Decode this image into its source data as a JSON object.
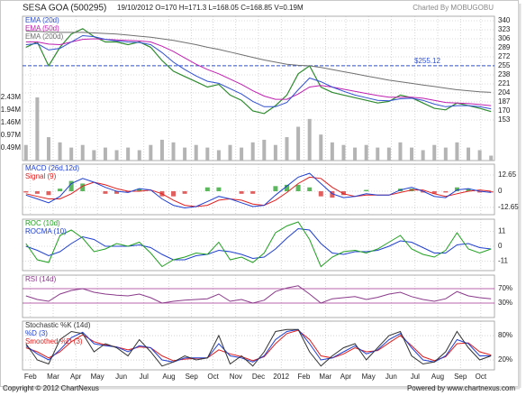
{
  "header": {
    "title": "SESA GOA (500295)",
    "quote": "19/10/2012 O=170 H=171.3 L=168.05 C=168.85 V=0.19M",
    "credit": "Charted By MOBUGOBU"
  },
  "footer": {
    "copyright": "Copyright © 2012 ChartNexus",
    "powered": "Powered by www.chartnexus.com"
  },
  "chart_data": [
    {
      "type": "line",
      "xlim": [
        -0.3,
        41.3
      ],
      "ylim": [
        76.5,
        348.5
      ],
      "grid": true,
      "yticks": [
        340,
        323,
        306,
        289,
        272,
        255,
        238,
        221,
        204,
        187,
        170,
        153
      ],
      "values": [
        290,
        300,
        255,
        290,
        315,
        325,
        310,
        300,
        300,
        295,
        300,
        290,
        265,
        245,
        235,
        225,
        215,
        220,
        200,
        190,
        170,
        165,
        180,
        200,
        240,
        255,
        215,
        205,
        200,
        195,
        190,
        185,
        188,
        200,
        195,
        185,
        175,
        172,
        185,
        180,
        175,
        168.85
      ],
      "color": "#2e8b2e",
      "series": [
        {
          "name": "EMA (20d)",
          "color": "#3050d0",
          "values": [
            295,
            297,
            285,
            288,
            300,
            312,
            310,
            305,
            302,
            300,
            299,
            295,
            280,
            262,
            248,
            236,
            226,
            222,
            212,
            202,
            188,
            178,
            178,
            186,
            210,
            232,
            225,
            215,
            207,
            200,
            195,
            190,
            189,
            193,
            194,
            190,
            183,
            178,
            180,
            180,
            178,
            174
          ]
        },
        {
          "name": "EMA (50d)",
          "color": "#c020b0",
          "values": [
            300,
            300,
            296,
            295,
            300,
            305,
            306,
            305,
            304,
            303,
            302,
            300,
            292,
            282,
            270,
            258,
            248,
            240,
            230,
            220,
            208,
            198,
            192,
            192,
            202,
            215,
            218,
            215,
            211,
            207,
            203,
            199,
            196,
            196,
            196,
            194,
            190,
            186,
            185,
            184,
            182,
            180
          ]
        },
        {
          "name": "EMA (200d)",
          "color": "#707070",
          "values": [
            320,
            320,
            319,
            318,
            318,
            318,
            317,
            316,
            315,
            313,
            311,
            309,
            306,
            303,
            299,
            295,
            290,
            286,
            281,
            276,
            271,
            266,
            262,
            258,
            256,
            255,
            252,
            248,
            244,
            240,
            236,
            232,
            228,
            225,
            222,
            219,
            216,
            213,
            210,
            208,
            206,
            205
          ]
        }
      ],
      "reference_line": {
        "value": 255.12,
        "label": "$255.12",
        "color": "#3050d0"
      },
      "volume": {
        "color": "#b4b4b4",
        "ylim": [
          0,
          5.55
        ],
        "yticks": [
          {
            "value": 2.43,
            "label": "2.43M"
          },
          {
            "value": 1.94,
            "label": "1.94M"
          },
          {
            "value": 1.46,
            "label": "1.46M"
          },
          {
            "value": 0.97,
            "label": "0.97M"
          },
          {
            "value": 0.49,
            "label": "0.49M"
          }
        ],
        "values": [
          0.6,
          2.43,
          0.9,
          0.7,
          0.5,
          0.6,
          0.4,
          0.5,
          0.4,
          0.5,
          0.4,
          0.6,
          0.8,
          0.7,
          0.5,
          0.6,
          0.5,
          0.4,
          0.6,
          0.5,
          0.7,
          0.8,
          0.6,
          0.9,
          1.3,
          1.6,
          1.0,
          0.7,
          0.6,
          0.5,
          0.6,
          0.5,
          0.5,
          0.7,
          0.5,
          0.4,
          0.6,
          0.5,
          0.7,
          0.5,
          0.4,
          0.19
        ]
      }
    },
    {
      "type": "line",
      "xlim": [
        -0.3,
        41.3
      ],
      "ylim": [
        -18.3,
        21.1
      ],
      "grid": true,
      "yticks": [
        12.65,
        0,
        -12.65
      ],
      "series": [
        {
          "name": "MACD (26d,12d)",
          "color": "#2040d0",
          "values": [
            -3,
            -6,
            -9,
            -4,
            6,
            10,
            7,
            3,
            0,
            -1,
            2,
            1,
            -6,
            -11,
            -13,
            -12,
            -8,
            -4,
            -6,
            -9,
            -12,
            -11,
            -3,
            4,
            11,
            14,
            6,
            -2,
            -5,
            -4,
            -2,
            -3,
            -3,
            1,
            3,
            0,
            -4,
            -5,
            1,
            2,
            0,
            -1
          ]
        },
        {
          "name": "Signal (9)",
          "color": "#e02020",
          "values": [
            -2,
            -4,
            -6,
            -6,
            -2,
            4,
            7,
            5,
            2,
            0,
            0,
            1,
            -2,
            -7,
            -11,
            -12,
            -11,
            -7,
            -6,
            -7,
            -10,
            -11,
            -7,
            -1,
            6,
            11,
            10,
            3,
            -2,
            -4,
            -3,
            -3,
            -3,
            -1,
            1,
            1,
            -2,
            -4,
            -2,
            0,
            1,
            0
          ]
        }
      ],
      "histogram": {
        "up_color": "#5cb85c",
        "down_color": "#e06060",
        "values": [
          -1,
          -2,
          -3,
          2,
          8,
          6,
          0,
          -2,
          -2,
          -1,
          2,
          0,
          -4,
          -4,
          -2,
          0,
          3,
          3,
          0,
          -2,
          -2,
          0,
          4,
          5,
          5,
          3,
          -4,
          -5,
          -3,
          0,
          1,
          0,
          0,
          2,
          2,
          -1,
          -2,
          -1,
          3,
          2,
          -1,
          -1
        ]
      }
    },
    {
      "type": "line",
      "xlim": [
        -0.3,
        41.3
      ],
      "ylim": [
        -18,
        20
      ],
      "grid": true,
      "yticks": [
        11,
        0,
        -11
      ],
      "series": [
        {
          "name": "ROC (10d)",
          "color": "#22a022",
          "values": [
            2,
            -10,
            -12,
            8,
            12,
            6,
            -4,
            -2,
            2,
            0,
            3,
            -5,
            -15,
            -10,
            -8,
            -5,
            -6,
            3,
            -10,
            -8,
            -12,
            -5,
            10,
            15,
            18,
            5,
            -15,
            -8,
            -4,
            -3,
            -5,
            -2,
            3,
            8,
            -2,
            -6,
            -8,
            -3,
            10,
            -2,
            -5,
            -2
          ]
        },
        {
          "name": "ROCMA (10)",
          "color": "#2040d0",
          "values": [
            0,
            -3,
            -7,
            -4,
            2,
            7,
            5,
            0,
            0,
            0,
            1,
            -1,
            -6,
            -10,
            -10,
            -7,
            -6,
            -3,
            -4,
            -6,
            -9,
            -8,
            -2,
            6,
            13,
            12,
            2,
            -5,
            -6,
            -4,
            -4,
            -3,
            0,
            4,
            3,
            -1,
            -5,
            -5,
            1,
            2,
            -1,
            -2
          ]
        }
      ]
    },
    {
      "type": "line",
      "xlim": [
        -0.3,
        41.3
      ],
      "ylim": [
        -10,
        107.5
      ],
      "grid": true,
      "level_color": "#a03090",
      "yticks": [
        {
          "value": 70,
          "label": "70%"
        },
        {
          "value": 30,
          "label": "30%"
        }
      ],
      "series": [
        {
          "name": "RSI (14d)",
          "color": "#8a3a8a",
          "values": [
            50,
            40,
            35,
            55,
            65,
            70,
            60,
            55,
            52,
            50,
            55,
            45,
            30,
            35,
            38,
            40,
            42,
            55,
            35,
            40,
            30,
            38,
            62,
            72,
            78,
            55,
            30,
            42,
            45,
            48,
            40,
            46,
            55,
            60,
            48,
            40,
            35,
            42,
            62,
            50,
            45,
            42
          ]
        }
      ]
    },
    {
      "type": "line",
      "xlim": [
        -0.3,
        41.3
      ],
      "ylim": [
        -4.4,
        115.6
      ],
      "grid": true,
      "yticks": [
        {
          "value": 80,
          "label": "80%"
        },
        {
          "value": 20,
          "label": "20%"
        }
      ],
      "series": [
        {
          "name": "Stochastic %K (14d)",
          "color": "#333333",
          "values": [
            60,
            20,
            10,
            70,
            90,
            85,
            40,
            60,
            50,
            30,
            70,
            40,
            5,
            15,
            30,
            20,
            25,
            80,
            10,
            30,
            5,
            40,
            90,
            95,
            95,
            40,
            5,
            30,
            50,
            60,
            20,
            50,
            80,
            90,
            30,
            10,
            15,
            40,
            90,
            50,
            20,
            30
          ]
        },
        {
          "name": "%D (3)",
          "color": "#2040d0",
          "values": [
            55,
            35,
            20,
            45,
            75,
            88,
            60,
            55,
            52,
            40,
            55,
            50,
            20,
            15,
            25,
            25,
            25,
            60,
            30,
            25,
            15,
            30,
            70,
            90,
            95,
            60,
            20,
            25,
            40,
            55,
            35,
            45,
            70,
            85,
            50,
            20,
            15,
            30,
            70,
            60,
            30,
            30
          ]
        },
        {
          "name": "Smoothed %D (3)",
          "color": "#e02020",
          "values": [
            50,
            40,
            25,
            40,
            65,
            82,
            65,
            57,
            52,
            45,
            52,
            50,
            30,
            18,
            22,
            24,
            25,
            45,
            35,
            28,
            18,
            28,
            60,
            85,
            93,
            70,
            30,
            25,
            35,
            50,
            40,
            43,
            62,
            80,
            55,
            28,
            18,
            28,
            60,
            62,
            40,
            32
          ]
        }
      ],
      "xticks": [
        {
          "value": 0.4,
          "label": "Feb"
        },
        {
          "value": 2.4,
          "label": "Mar"
        },
        {
          "value": 4.4,
          "label": "Apr"
        },
        {
          "value": 6.3,
          "label": "May"
        },
        {
          "value": 8.4,
          "label": "Jun"
        },
        {
          "value": 10.4,
          "label": "Jul"
        },
        {
          "value": 12.6,
          "label": "Aug"
        },
        {
          "value": 14.6,
          "label": "Sep"
        },
        {
          "value": 16.5,
          "label": "Oct"
        },
        {
          "value": 18.5,
          "label": "Nov"
        },
        {
          "value": 20.5,
          "label": "Dec"
        },
        {
          "value": 22.5,
          "label": "2012"
        },
        {
          "value": 24.5,
          "label": "Feb"
        },
        {
          "value": 26.4,
          "label": "Mar"
        },
        {
          "value": 28.2,
          "label": "Apr"
        },
        {
          "value": 30.2,
          "label": "May"
        },
        {
          "value": 32.2,
          "label": "Jun"
        },
        {
          "value": 34.3,
          "label": "Jul"
        },
        {
          "value": 36.3,
          "label": "Aug"
        },
        {
          "value": 38.3,
          "label": "Sep"
        },
        {
          "value": 40.1,
          "label": "Oct"
        }
      ]
    }
  ]
}
